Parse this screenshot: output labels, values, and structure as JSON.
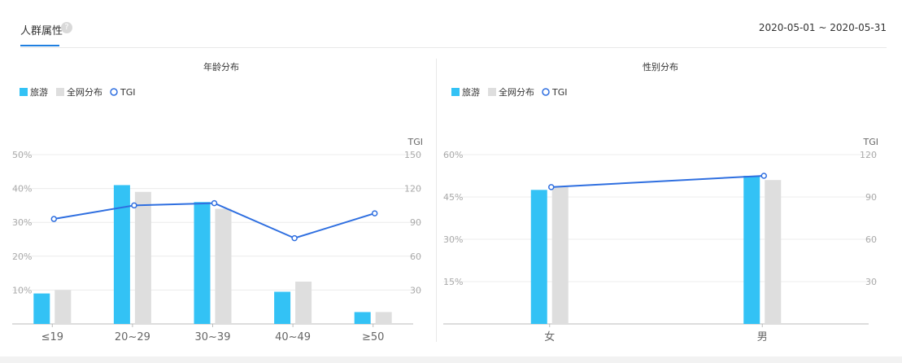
{
  "header": {
    "title": "人群属性",
    "help_icon": "?",
    "date_range": "2020-05-01 ~ 2020-05-31"
  },
  "legend": {
    "series_a": "旅游",
    "series_b": "全网分布",
    "series_tgi": "TGI"
  },
  "colors": {
    "primary": "#33c2f5",
    "secondary": "#dedede",
    "tgi_line": "#2f6fe0",
    "accent": "#1f7fe0"
  },
  "chart_data": [
    {
      "type": "bar",
      "title": "年龄分布",
      "categories": [
        "≤19",
        "20~29",
        "30~39",
        "40~49",
        "≥50"
      ],
      "series": [
        {
          "name": "旅游",
          "values": [
            9,
            41,
            36,
            9.5,
            3.5
          ]
        },
        {
          "name": "全网分布",
          "values": [
            10,
            39,
            34,
            12.5,
            3.5
          ]
        },
        {
          "name": "TGI",
          "type": "line",
          "axis": "right",
          "values": [
            93,
            105,
            107,
            76,
            98
          ]
        }
      ],
      "y_left": {
        "ticks": [
          "10%",
          "20%",
          "30%",
          "40%",
          "50%"
        ],
        "range": [
          0,
          50
        ]
      },
      "y_right": {
        "label": "TGI",
        "ticks": [
          "30",
          "60",
          "90",
          "120",
          "150"
        ],
        "range": [
          0,
          150
        ]
      },
      "legend": "top-left",
      "grid": true
    },
    {
      "type": "bar",
      "title": "性别分布",
      "categories": [
        "女",
        "男"
      ],
      "series": [
        {
          "name": "旅游",
          "values": [
            47.5,
            52.5
          ]
        },
        {
          "name": "全网分布",
          "values": [
            48.5,
            51
          ]
        },
        {
          "name": "TGI",
          "type": "line",
          "axis": "right",
          "values": [
            97,
            105
          ]
        }
      ],
      "y_left": {
        "ticks": [
          "15%",
          "30%",
          "45%",
          "60%"
        ],
        "range": [
          0,
          60
        ]
      },
      "y_right": {
        "label": "TGI",
        "ticks": [
          "30",
          "60",
          "90",
          "120"
        ],
        "range": [
          0,
          120
        ]
      },
      "legend": "top-left",
      "grid": true
    }
  ]
}
